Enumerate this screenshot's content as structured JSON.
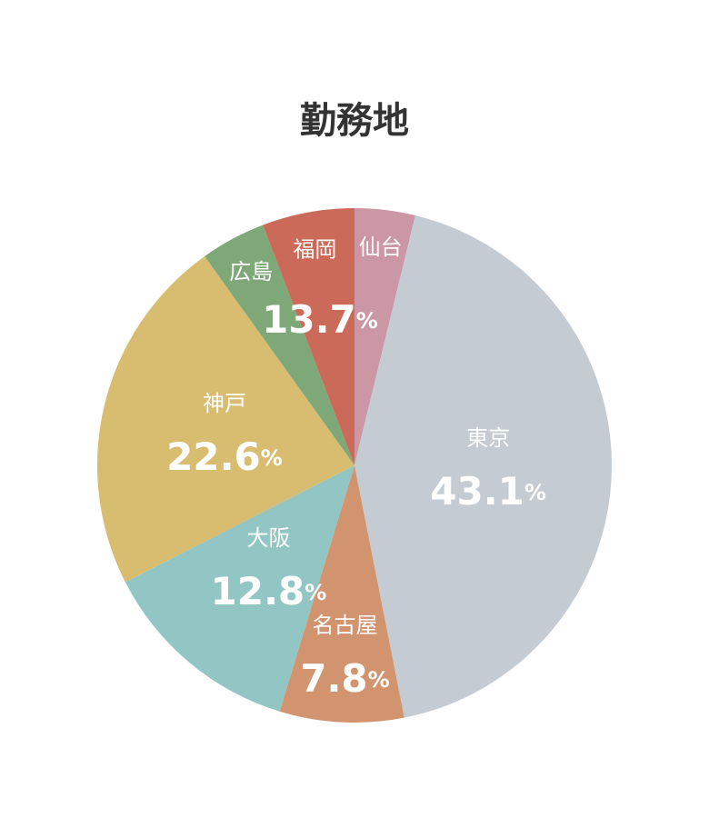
{
  "chart_data": {
    "type": "pie",
    "title": "勤務地",
    "categories": [
      "仙台",
      "東京",
      "名古屋",
      "大阪",
      "神戸",
      "広島",
      "福岡"
    ],
    "values": [
      3.8,
      43.1,
      7.8,
      12.8,
      22.6,
      4.1,
      5.8
    ],
    "value_labels": [
      null,
      "43.1%",
      "7.8%",
      "12.8%",
      "22.6%",
      null,
      null
    ],
    "colors": [
      "#cc97a4",
      "#c4cbd2",
      "#d2946e",
      "#92c6c5",
      "#d8bd70",
      "#7fa878",
      "#cb6a58"
    ],
    "group_label": {
      "value": 13.7,
      "label": "13.7%"
    }
  }
}
